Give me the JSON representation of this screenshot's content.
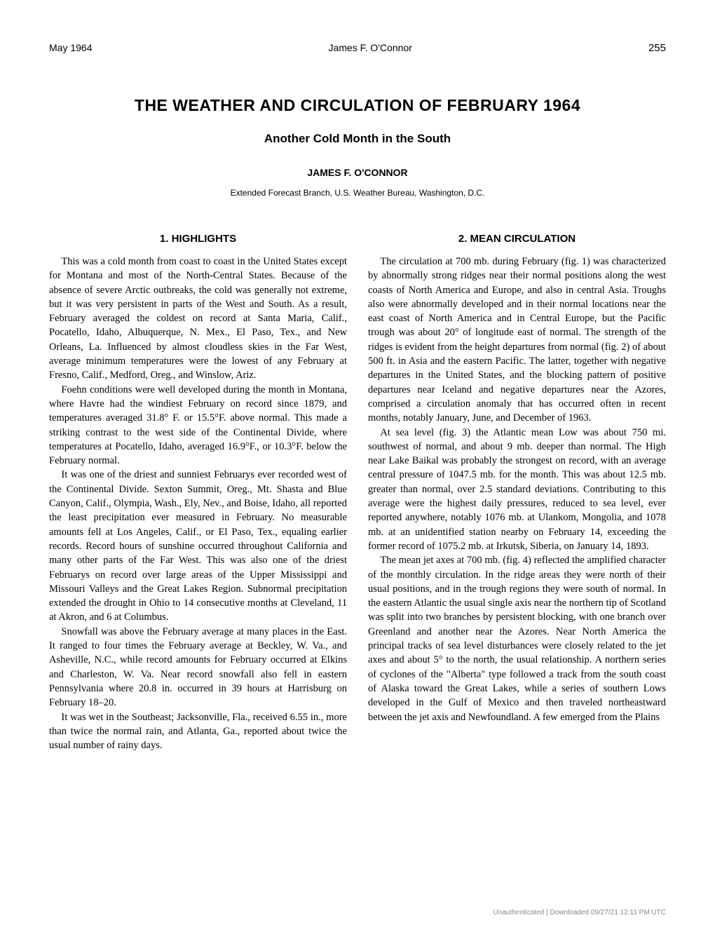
{
  "header": {
    "date": "May 1964",
    "author_name": "James F. O'Connor",
    "page_number": "255"
  },
  "title": "THE WEATHER AND CIRCULATION OF FEBRUARY 1964",
  "subtitle": "Another Cold Month in the South",
  "author": "JAMES F. O'CONNOR",
  "affiliation": "Extended Forecast Branch, U.S. Weather Bureau, Washington, D.C.",
  "sections": {
    "left": {
      "heading": "1. HIGHLIGHTS",
      "paragraphs": [
        "This was a cold month from coast to coast in the United States except for Montana and most of the North-Central States. Because of the absence of severe Arctic outbreaks, the cold was generally not extreme, but it was very persistent in parts of the West and South. As a result, February averaged the coldest on record at Santa Maria, Calif., Pocatello, Idaho, Albuquerque, N. Mex., El Paso, Tex., and New Orleans, La. Influenced by almost cloudless skies in the Far West, average minimum temperatures were the lowest of any February at Fresno, Calif., Medford, Oreg., and Winslow, Ariz.",
        "Foehn conditions were well developed during the month in Montana, where Havre had the windiest February on record since 1879, and temperatures averaged 31.8° F. or 15.5°F. above normal. This made a striking contrast to the west side of the Continental Divide, where temperatures at Pocatello, Idaho, averaged 16.9°F., or 10.3°F. below the February normal.",
        "It was one of the driest and sunniest Februarys ever recorded west of the Continental Divide. Sexton Summit, Oreg., Mt. Shasta and Blue Canyon, Calif., Olympia, Wash., Ely, Nev., and Boise, Idaho, all reported the least precipitation ever measured in February. No measurable amounts fell at Los Angeles, Calif., or El Paso, Tex., equaling earlier records. Record hours of sunshine occurred throughout California and many other parts of the Far West. This was also one of the driest Februarys on record over large areas of the Upper Mississippi and Missouri Valleys and the Great Lakes Region. Subnormal precipitation extended the drought in Ohio to 14 consecutive months at Cleveland, 11 at Akron, and 6 at Columbus.",
        "Snowfall was above the February average at many places in the East. It ranged to four times the February average at Beckley, W. Va., and Asheville, N.C., while record amounts for February occurred at Elkins and Charleston, W. Va. Near record snowfall also fell in eastern Pennsylvania where 20.8 in. occurred in 39 hours at Harrisburg on February 18–20.",
        "It was wet in the Southeast; Jacksonville, Fla., received 6.55 in., more than twice the normal rain, and Atlanta, Ga., reported about twice the usual number of rainy days."
      ]
    },
    "right": {
      "heading": "2. MEAN CIRCULATION",
      "paragraphs": [
        "The circulation at 700 mb. during February (fig. 1) was characterized by abnormally strong ridges near their normal positions along the west coasts of North America and Europe, and also in central Asia. Troughs also were abnormally developed and in their normal locations near the east coast of North America and in Central Europe, but the Pacific trough was about 20° of longitude east of normal. The strength of the ridges is evident from the height departures from normal (fig. 2) of about 500 ft. in Asia and the eastern Pacific. The latter, together with negative departures in the United States, and the blocking pattern of positive departures near Iceland and negative departures near the Azores, comprised a circulation anomaly that has occurred often in recent months, notably January, June, and December of 1963.",
        "At sea level (fig. 3) the Atlantic mean Low was about 750 mi. southwest of normal, and about 9 mb. deeper than normal. The High near Lake Baikal was probably the strongest on record, with an average central pressure of 1047.5 mb. for the month. This was about 12.5 mb. greater than normal, over 2.5 standard deviations. Contributing to this average were the highest daily pressures, reduced to sea level, ever reported anywhere, notably 1076 mb. at Ulankom, Mongolia, and 1078 mb. at an unidentified station nearby on February 14, exceeding the former record of 1075.2 mb. at Irkutsk, Siberia, on January 14, 1893.",
        "The mean jet axes at 700 mb. (fig. 4) reflected the amplified character of the monthly circulation. In the ridge areas they were north of their usual positions, and in the trough regions they were south of normal. In the eastern Atlantic the usual single axis near the northern tip of Scotland was split into two branches by persistent blocking, with one branch over Greenland and another near the Azores. Near North America the principal tracks of sea level disturbances were closely related to the jet axes and about 5° to the north, the usual relationship. A northern series of cyclones of the \"Alberta\" type followed a track from the south coast of Alaska toward the Great Lakes, while a series of southern Lows developed in the Gulf of Mexico and then traveled northeastward between the jet axis and Newfoundland. A few emerged from the Plains"
      ]
    }
  },
  "footer": "Unauthenticated | Downloaded 09/27/21 12:11 PM UTC"
}
